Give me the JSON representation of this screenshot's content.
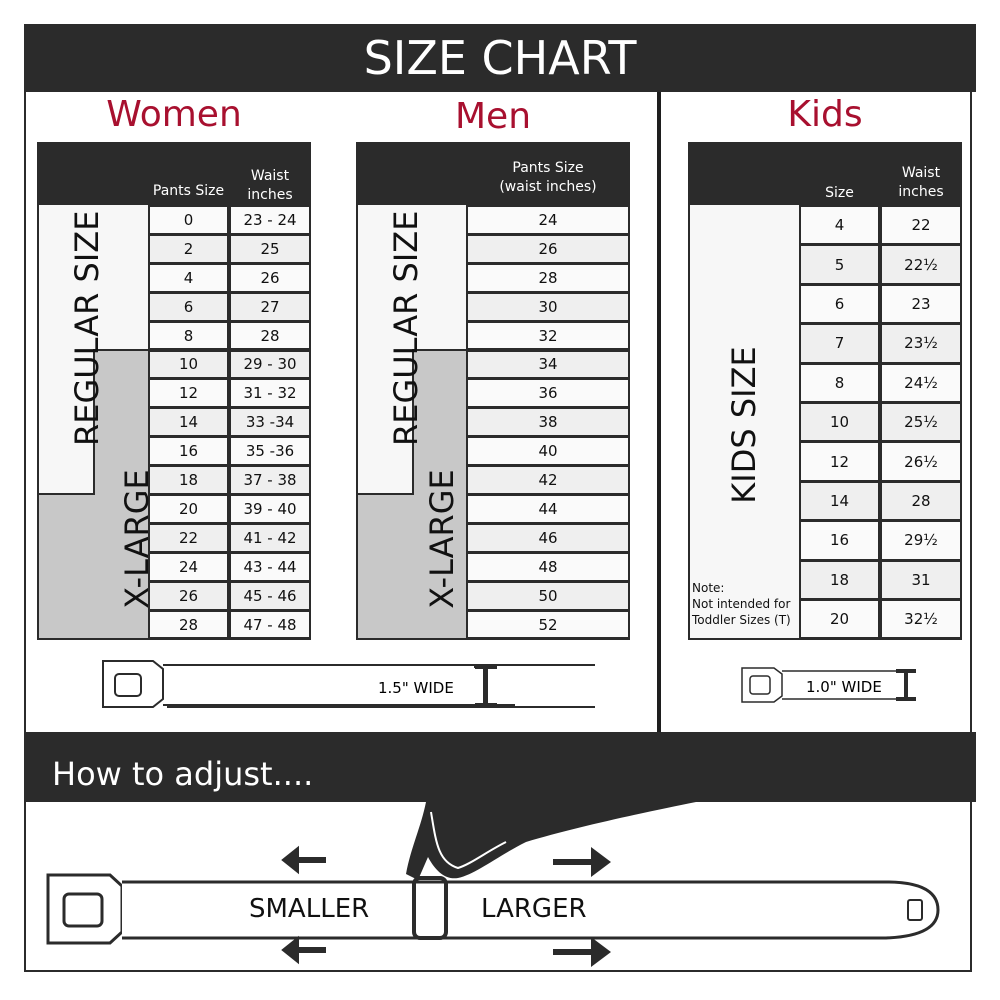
{
  "title": "SIZE CHART",
  "women": {
    "title": "Women",
    "col1": "Pants Size",
    "col2_line1": "Waist",
    "col2_line2": "inches",
    "regular_label": "REGULAR SIZE",
    "xlarge_label": "X-LARGE",
    "rows": [
      [
        "0",
        "23 - 24"
      ],
      [
        "2",
        "25"
      ],
      [
        "4",
        "26"
      ],
      [
        "6",
        "27"
      ],
      [
        "8",
        "28"
      ],
      [
        "10",
        "29 - 30"
      ],
      [
        "12",
        "31 - 32"
      ],
      [
        "14",
        "33 -34"
      ],
      [
        "16",
        "35 -36"
      ],
      [
        "18",
        "37 - 38"
      ],
      [
        "20",
        "39 - 40"
      ],
      [
        "22",
        "41 - 42"
      ],
      [
        "24",
        "43 - 44"
      ],
      [
        "26",
        "45 - 46"
      ],
      [
        "28",
        "47 - 48"
      ]
    ]
  },
  "men": {
    "title": "Men",
    "col1_line1": "Pants Size",
    "col1_line2": "(waist inches)",
    "regular_label": "REGULAR SIZE",
    "xlarge_label": "X-LARGE",
    "rows": [
      "24",
      "26",
      "28",
      "30",
      "32",
      "34",
      "36",
      "38",
      "40",
      "42",
      "44",
      "46",
      "48",
      "50",
      "52"
    ]
  },
  "kids": {
    "title": "Kids",
    "col1": "Size",
    "col2_line1": "Waist",
    "col2_line2": "inches",
    "size_label": "KIDS SIZE",
    "note_line1": "Note:",
    "note_line2": "Not intended for",
    "note_line3": "Toddler Sizes (T)",
    "rows": [
      [
        "4",
        "22"
      ],
      [
        "5",
        "22½"
      ],
      [
        "6",
        "23"
      ],
      [
        "7",
        "23½"
      ],
      [
        "8",
        "24½"
      ],
      [
        "10",
        "25½"
      ],
      [
        "12",
        "26½"
      ],
      [
        "14",
        "28"
      ],
      [
        "16",
        "29½"
      ],
      [
        "18",
        "31"
      ],
      [
        "20",
        "32½"
      ]
    ]
  },
  "adult_belt_width": "1.5\" WIDE",
  "kids_belt_width": "1.0\" WIDE",
  "adjust": {
    "title": "How to adjust....",
    "smaller": "SMALLER",
    "larger": "LARGER"
  },
  "colors": {
    "accent": "#a8102f",
    "dark": "#2b2b2b",
    "xlarge_gray": "#c8c8c8",
    "row_alt": "#efefef"
  }
}
